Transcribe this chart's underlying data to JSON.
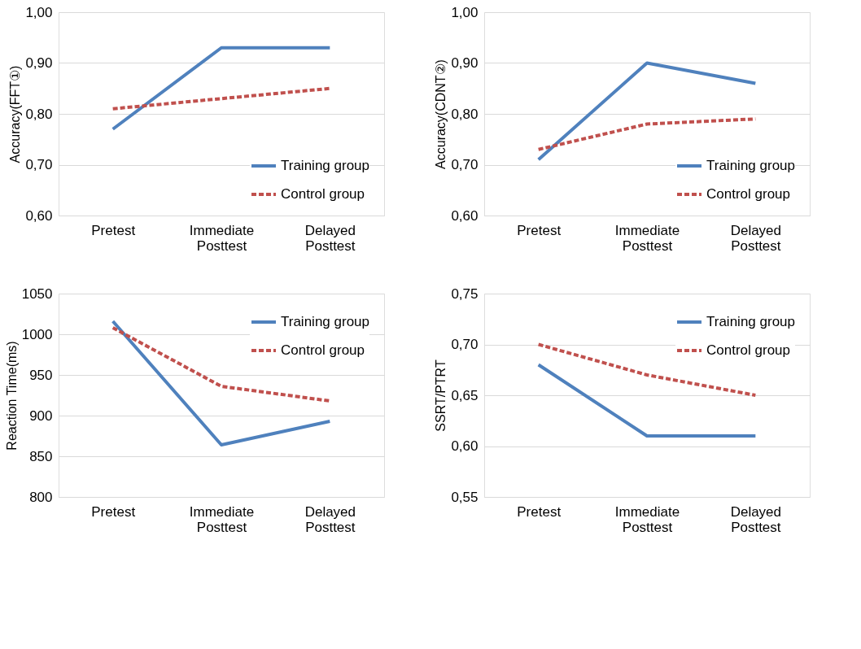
{
  "chart_data": [
    {
      "type": "line",
      "ylabel": "Accuracy(FFT①)",
      "categories": [
        "Pretest",
        "Immediate Posttest",
        "Delayed Posttest"
      ],
      "ylim": [
        0.6,
        1.0
      ],
      "yticks": [
        {
          "value": 0.6,
          "label": "0,60"
        },
        {
          "value": 0.7,
          "label": "0,70"
        },
        {
          "value": 0.8,
          "label": "0,80"
        },
        {
          "value": 0.9,
          "label": "0,90"
        },
        {
          "value": 1.0,
          "label": "1,00"
        }
      ],
      "grid": "y",
      "legend": "bottom right",
      "series": [
        {
          "name": "Training group",
          "color": "#4f81bd",
          "line_style": "solid",
          "values": [
            0.77,
            0.93,
            0.93
          ]
        },
        {
          "name": "Control group",
          "color": "#c0504d",
          "line_style": "dashed",
          "values": [
            0.81,
            0.83,
            0.85
          ]
        }
      ]
    },
    {
      "type": "line",
      "ylabel": "Accuracy(CDNT②)",
      "categories": [
        "Pretest",
        "Immediate Posttest",
        "Delayed Posttest"
      ],
      "ylim": [
        0.6,
        1.0
      ],
      "yticks": [
        {
          "value": 0.6,
          "label": "0,60"
        },
        {
          "value": 0.7,
          "label": "0,70"
        },
        {
          "value": 0.8,
          "label": "0,80"
        },
        {
          "value": 0.9,
          "label": "0,90"
        },
        {
          "value": 1.0,
          "label": "1,00"
        }
      ],
      "grid": "y",
      "legend": "bottom right",
      "series": [
        {
          "name": "Training group",
          "color": "#4f81bd",
          "line_style": "solid",
          "values": [
            0.71,
            0.9,
            0.86
          ]
        },
        {
          "name": "Control group",
          "color": "#c0504d",
          "line_style": "dashed",
          "values": [
            0.73,
            0.78,
            0.79
          ]
        }
      ]
    },
    {
      "type": "line",
      "ylabel": "Reaction Time(ms)",
      "categories": [
        "Pretest",
        "Immediate Posttest",
        "Delayed Posttest"
      ],
      "ylim": [
        800,
        1050
      ],
      "yticks": [
        800,
        850,
        900,
        950,
        1000,
        1050
      ],
      "grid": "y",
      "legend": "top right",
      "series": [
        {
          "name": "Training group",
          "color": "#4f81bd",
          "line_style": "solid",
          "values": [
            1016,
            864,
            893
          ]
        },
        {
          "name": "Control group",
          "color": "#c0504d",
          "line_style": "dashed",
          "values": [
            1008,
            936,
            918
          ]
        }
      ]
    },
    {
      "type": "line",
      "ylabel": "SSRT/PTRT",
      "categories": [
        "Pretest",
        "Immediate Posttest",
        "Delayed Posttest"
      ],
      "ylim": [
        0.55,
        0.75
      ],
      "yticks": [
        {
          "value": 0.55,
          "label": "0,55"
        },
        {
          "value": 0.6,
          "label": "0,60"
        },
        {
          "value": 0.65,
          "label": "0,65"
        },
        {
          "value": 0.7,
          "label": "0,70"
        },
        {
          "value": 0.75,
          "label": "0,75"
        }
      ],
      "grid": "y",
      "legend": "top right",
      "series": [
        {
          "name": "Training group",
          "color": "#4f81bd",
          "line_style": "solid",
          "values": [
            0.68,
            0.61,
            0.61
          ]
        },
        {
          "name": "Control group",
          "color": "#c0504d",
          "line_style": "dashed",
          "values": [
            0.7,
            0.67,
            0.65
          ]
        }
      ]
    }
  ]
}
